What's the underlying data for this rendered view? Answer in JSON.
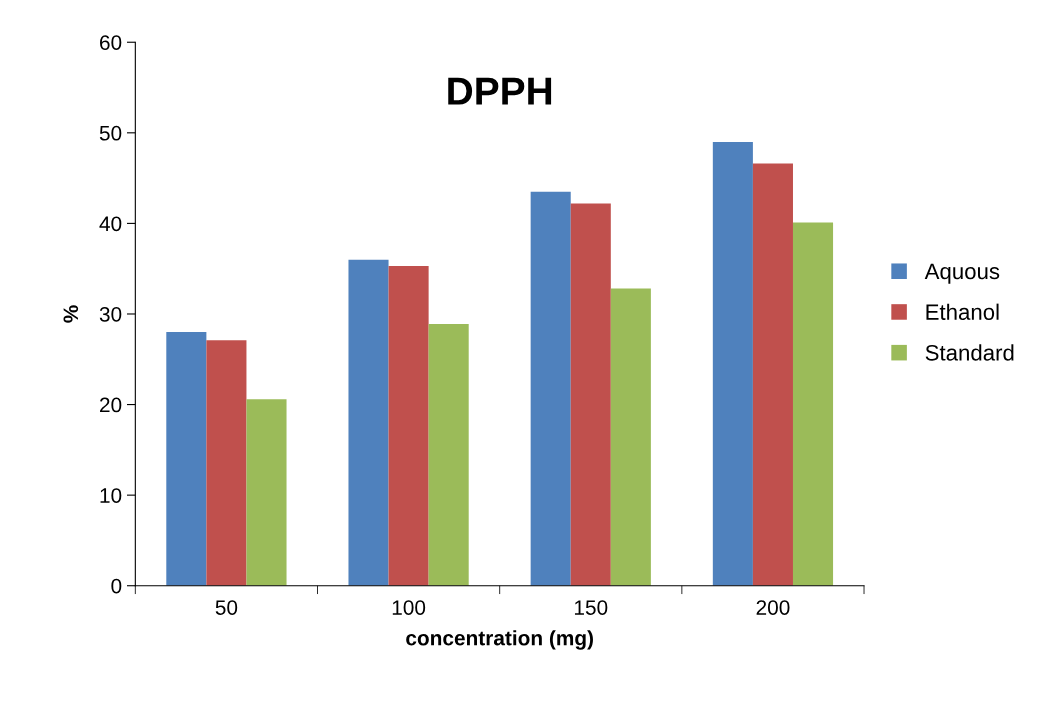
{
  "chart_data": {
    "type": "bar",
    "title": "DPPH",
    "xlabel": "concentration (mg)",
    "ylabel": "%",
    "categories": [
      "50",
      "100",
      "150",
      "200"
    ],
    "series": [
      {
        "name": "Aquous",
        "color": "#4f81bd",
        "values": [
          28.0,
          36.0,
          43.5,
          49.0
        ]
      },
      {
        "name": "Ethanol",
        "color": "#c0504d",
        "values": [
          27.1,
          35.3,
          42.2,
          46.6
        ]
      },
      {
        "name": "Standard",
        "color": "#9bbb59",
        "values": [
          20.6,
          28.9,
          32.8,
          40.1
        ]
      }
    ],
    "ylim": [
      0,
      60
    ],
    "yticks": [
      0,
      10,
      20,
      30,
      40,
      50,
      60
    ],
    "grid": false,
    "legend": "right"
  }
}
